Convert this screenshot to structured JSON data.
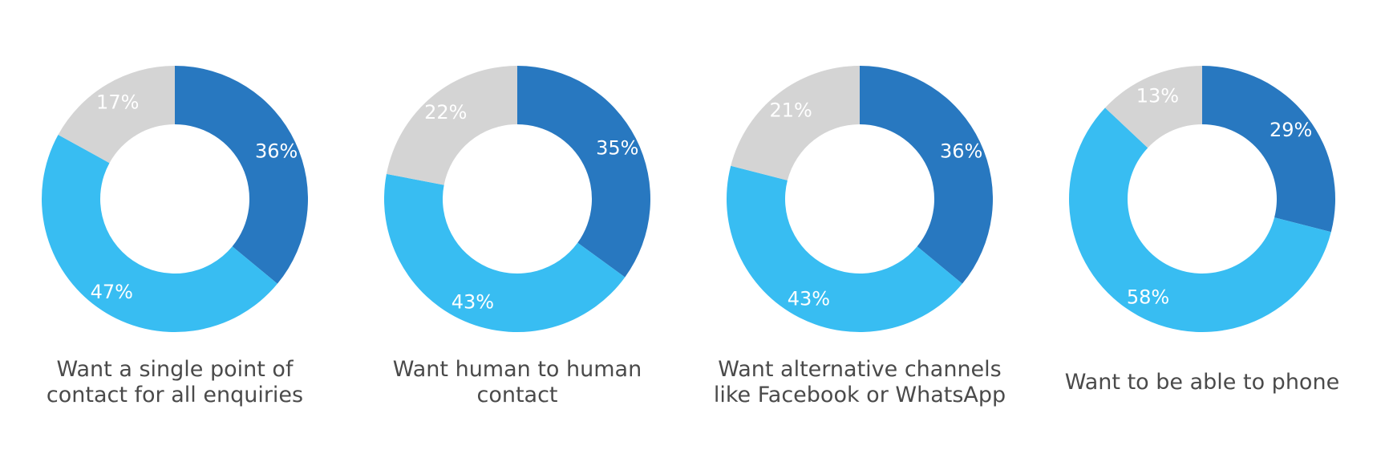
{
  "colors": {
    "dark_blue": "#2878c0",
    "light_blue": "#38bdf2",
    "grey": "#d4d4d4"
  },
  "chart_data": [
    {
      "type": "pie",
      "style": "donut",
      "caption": [
        "Want a single point of",
        "contact for all enquiries"
      ],
      "slices": [
        {
          "label": "36%",
          "value": 36,
          "color": "#2878c0"
        },
        {
          "label": "47%",
          "value": 47,
          "color": "#38bdf2"
        },
        {
          "label": "17%",
          "value": 17,
          "color": "#d4d4d4"
        }
      ]
    },
    {
      "type": "pie",
      "style": "donut",
      "caption": [
        "Want human to human",
        "contact"
      ],
      "slices": [
        {
          "label": "35%",
          "value": 35,
          "color": "#2878c0"
        },
        {
          "label": "43%",
          "value": 43,
          "color": "#38bdf2"
        },
        {
          "label": "22%",
          "value": 22,
          "color": "#d4d4d4"
        }
      ]
    },
    {
      "type": "pie",
      "style": "donut",
      "caption": [
        "Want alternative channels",
        "like Facebook or WhatsApp"
      ],
      "slices": [
        {
          "label": "36%",
          "value": 36,
          "color": "#2878c0"
        },
        {
          "label": "43%",
          "value": 43,
          "color": "#38bdf2"
        },
        {
          "label": "21%",
          "value": 21,
          "color": "#d4d4d4"
        }
      ]
    },
    {
      "type": "pie",
      "style": "donut",
      "caption": [
        "Want to be able to phone"
      ],
      "slices": [
        {
          "label": "29%",
          "value": 29,
          "color": "#2878c0"
        },
        {
          "label": "58%",
          "value": 58,
          "color": "#38bdf2"
        },
        {
          "label": "13%",
          "value": 13,
          "color": "#d4d4d4"
        }
      ]
    }
  ]
}
